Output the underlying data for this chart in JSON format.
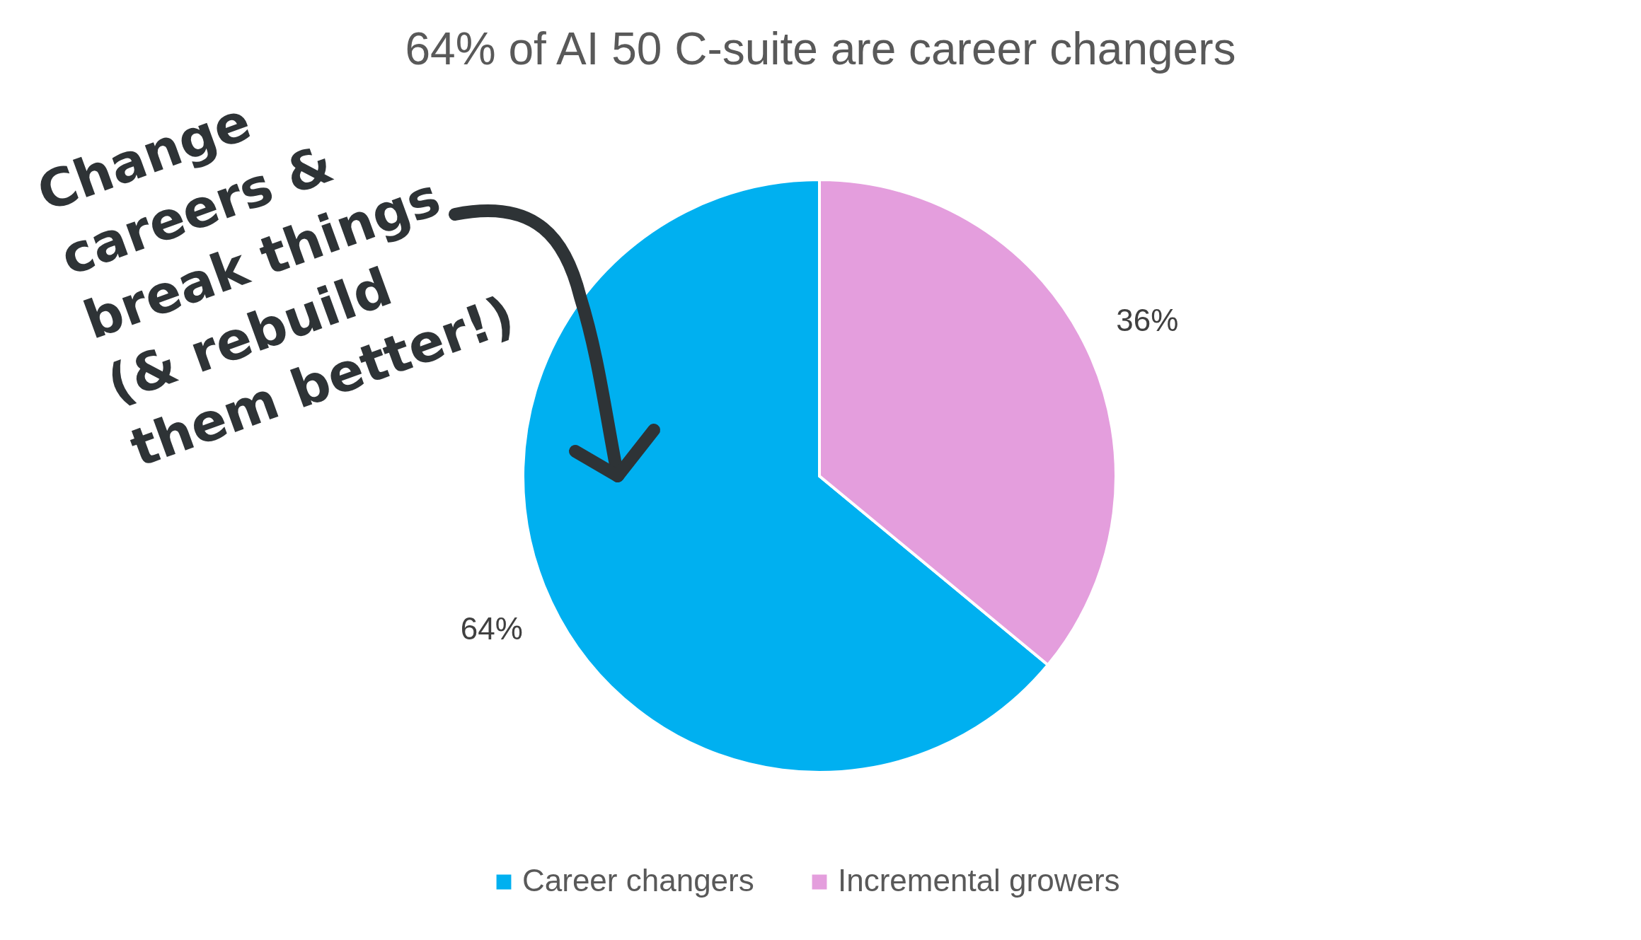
{
  "chart_data": {
    "type": "pie",
    "title": "64% of AI 50 C-suite are career changers",
    "categories": [
      "Career changers",
      "Incremental growers"
    ],
    "values": [
      64,
      36
    ],
    "colors": [
      "#00b0f0",
      "#e49edd"
    ],
    "value_labels": [
      "64%",
      "36%"
    ],
    "legend": "bottom",
    "annotations": [
      "Change\ncareers &\nbreak things\n(& rebuild\nthem better!)"
    ]
  }
}
